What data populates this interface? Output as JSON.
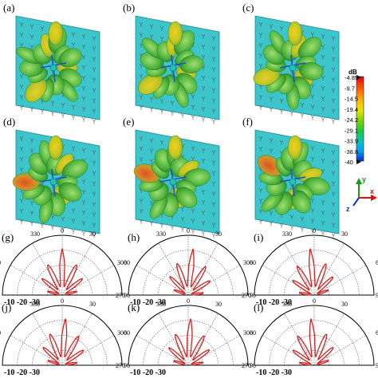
{
  "panel_labels_3d": [
    "(a)",
    "(b)",
    "(c)",
    "(d)",
    "(e)",
    "(f)"
  ],
  "panel_labels_polar": [
    "(g)",
    "(h)",
    "(i)",
    "(j)",
    "(k)",
    "(l)"
  ],
  "colorbar": {
    "unit": "dB",
    "ticks": [
      "-4.85",
      "-9.7",
      "-14.5",
      "-19.4",
      "-24.2",
      "-29.1",
      "-33.9",
      "-38.8",
      "-40"
    ],
    "colors": [
      "#e8001a",
      "#ff5a00",
      "#ffb400",
      "#e6e600",
      "#7fd400",
      "#1ec83c",
      "#00c8b4",
      "#00a0ff",
      "#0032c8"
    ]
  },
  "axes_triad": {
    "x": "x",
    "y": "y",
    "z": "z",
    "x_color": "#e01010",
    "y_color": "#10a010",
    "z_color": "#1030d0"
  },
  "polar": {
    "angle_labels": [
      "330",
      "0",
      "30",
      "300",
      "60",
      "270",
      "90"
    ],
    "radial_labels": "-10 -20 -30",
    "curve_color": "#d42020",
    "lobe_offsets_deg": [
      0,
      6,
      -5,
      4,
      3,
      -4
    ]
  },
  "surface_color": "#3cc6cc",
  "pattern_color": "#5fc03a"
}
